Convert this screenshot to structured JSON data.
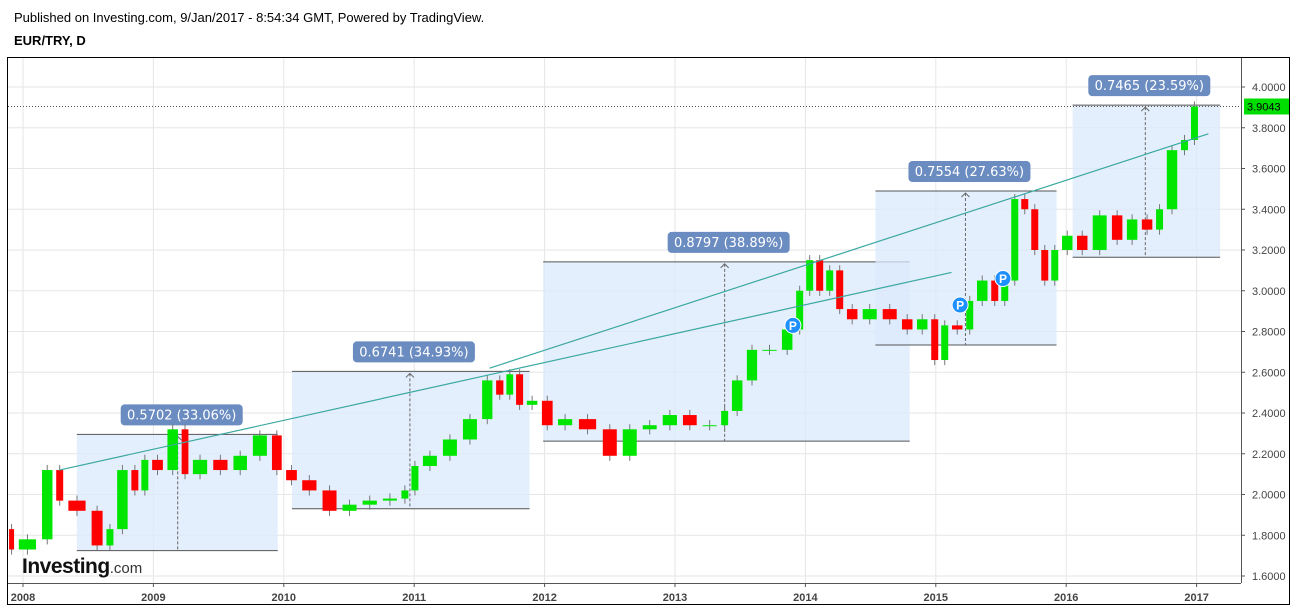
{
  "header": {
    "published": "Published on Investing.com, 9/Jan/2017 - 8:54:34 GMT, Powered by TradingView.",
    "symbol": "EUR/TRY, D"
  },
  "logo": {
    "text": "Investing",
    "suffix": ".com"
  },
  "chart_data": {
    "type": "candlestick",
    "symbol": "EUR/TRY",
    "interval": "D",
    "grid": true,
    "x_ticks": [
      "2008",
      "2009",
      "2010",
      "2011",
      "2012",
      "2013",
      "2014",
      "2015",
      "2016",
      "2017"
    ],
    "y_ticks": [
      "1.6000",
      "1.8000",
      "2.0000",
      "2.2000",
      "2.4000",
      "2.6000",
      "2.8000",
      "3.0000",
      "3.2000",
      "3.4000",
      "3.6000",
      "3.8000",
      "4.0000"
    ],
    "ylim": [
      1.56,
      4.14
    ],
    "xlim": [
      "2007-11-20",
      "2017-03-20"
    ],
    "last_price": "3.9043",
    "last_price_value": 3.9043,
    "colors": {
      "up": "#00e600",
      "down": "#ff0000",
      "wick": "#777777",
      "last_price": "#00dd00",
      "box_fill": "#dbeafc",
      "label_bg": "#6b8cc1",
      "trendline": "#3aa8a0",
      "marker": "#1e90ff"
    },
    "series": [
      [
        "2007-11-20",
        1.83
      ],
      [
        "2007-12-10",
        1.73
      ],
      [
        "2008-02-17",
        1.78
      ],
      [
        "2008-03-30",
        2.12
      ],
      [
        "2008-04-27",
        1.97
      ],
      [
        "2008-07-05",
        1.92
      ],
      [
        "2008-08-18",
        1.75
      ],
      [
        "2008-09-15",
        1.83
      ],
      [
        "2008-10-27",
        2.12
      ],
      [
        "2008-11-24",
        2.02
      ],
      [
        "2008-12-22",
        2.17
      ],
      [
        "2009-02-03",
        2.12
      ],
      [
        "2009-03-17",
        2.32
      ],
      [
        "2009-04-13",
        2.1
      ],
      [
        "2009-06-09",
        2.17
      ],
      [
        "2009-08-05",
        2.12
      ],
      [
        "2009-09-28",
        2.19
      ],
      [
        "2009-11-23",
        2.29
      ],
      [
        "2010-01-01",
        2.12
      ],
      [
        "2010-02-13",
        2.07
      ],
      [
        "2010-04-11",
        2.02
      ],
      [
        "2010-06-06",
        1.92
      ],
      [
        "2010-08-01",
        1.95
      ],
      [
        "2010-09-27",
        1.97
      ],
      [
        "2010-11-22",
        1.98
      ],
      [
        "2010-12-20",
        2.02
      ],
      [
        "2011-01-17",
        2.14
      ],
      [
        "2011-03-14",
        2.19
      ],
      [
        "2011-05-09",
        2.27
      ],
      [
        "2011-07-04",
        2.37
      ],
      [
        "2011-08-14",
        2.56
      ],
      [
        "2011-09-12",
        2.49
      ],
      [
        "2011-10-09",
        2.59
      ],
      [
        "2011-11-06",
        2.44
      ],
      [
        "2011-12-18",
        2.46
      ],
      [
        "2012-01-30",
        2.34
      ],
      [
        "2012-03-27",
        2.37
      ],
      [
        "2012-06-04",
        2.32
      ],
      [
        "2012-07-30",
        2.19
      ],
      [
        "2012-09-24",
        2.32
      ],
      [
        "2012-11-19",
        2.34
      ],
      [
        "2013-01-15",
        2.39
      ],
      [
        "2013-03-11",
        2.34
      ],
      [
        "2013-05-06",
        2.34
      ],
      [
        "2013-06-03",
        2.41
      ],
      [
        "2013-07-15",
        2.56
      ],
      [
        "2013-08-25",
        2.71
      ],
      [
        "2013-10-21",
        2.71
      ],
      [
        "2013-12-02",
        2.81
      ],
      [
        "2013-12-30",
        3.0
      ],
      [
        "2014-01-27",
        3.15
      ],
      [
        "2014-02-24",
        3.0
      ],
      [
        "2014-03-24",
        3.1
      ],
      [
        "2014-04-21",
        2.91
      ],
      [
        "2014-06-02",
        2.86
      ],
      [
        "2014-07-28",
        2.91
      ],
      [
        "2014-09-22",
        2.86
      ],
      [
        "2014-11-03",
        2.81
      ],
      [
        "2014-12-15",
        2.86
      ],
      [
        "2015-01-12",
        2.66
      ],
      [
        "2015-02-09",
        2.83
      ],
      [
        "2015-03-23",
        2.81
      ],
      [
        "2015-04-20",
        2.95
      ],
      [
        "2015-06-01",
        3.05
      ],
      [
        "2015-06-29",
        2.95
      ],
      [
        "2015-07-27",
        3.05
      ],
      [
        "2015-08-24",
        3.45
      ],
      [
        "2015-09-21",
        3.4
      ],
      [
        "2015-10-19",
        3.2
      ],
      [
        "2015-11-16",
        3.05
      ],
      [
        "2015-12-14",
        3.2
      ],
      [
        "2016-01-25",
        3.27
      ],
      [
        "2016-03-07",
        3.2
      ],
      [
        "2016-05-02",
        3.37
      ],
      [
        "2016-06-13",
        3.25
      ],
      [
        "2016-07-25",
        3.35
      ],
      [
        "2016-09-05",
        3.3
      ],
      [
        "2016-10-03",
        3.4
      ],
      [
        "2016-11-14",
        3.69
      ],
      [
        "2016-12-12",
        3.74
      ],
      [
        "2017-01-09",
        3.9043
      ]
    ],
    "annotations": {
      "price_ranges": [
        {
          "start": "2008-05-31",
          "end": "2009-12-15",
          "low": 1.7247,
          "high": 2.2949,
          "arrow_at": "2009-03-10",
          "label": "0.5702 (33.06%)"
        },
        {
          "start": "2010-01-24",
          "end": "2011-11-20",
          "low": 1.9299,
          "high": 2.604,
          "arrow_at": "2010-12-20",
          "label": "0.6741 (34.93%)"
        },
        {
          "start": "2011-12-28",
          "end": "2014-10-20",
          "low": 2.262,
          "high": 3.1417,
          "arrow_at": "2013-05-20",
          "label": "0.8797 (38.89%)"
        },
        {
          "start": "2014-07-16",
          "end": "2015-12-05",
          "low": 2.734,
          "high": 3.4894,
          "arrow_at": "2015-03-25",
          "label": "0.7554 (27.63%)"
        },
        {
          "start": "2016-01-19",
          "end": "2017-03-08",
          "low": 3.1645,
          "high": 3.911,
          "arrow_at": "2016-08-10",
          "label": "0.7465 (23.59%)"
        }
      ],
      "trendlines": [
        {
          "from": [
            "2008-04-12",
            2.12
          ],
          "to": [
            "2015-02-14",
            3.09
          ]
        },
        {
          "from": [
            "2011-07-31",
            2.62
          ],
          "to": [
            "2017-02-03",
            3.77
          ]
        }
      ],
      "markers": [
        {
          "date": "2013-11-27",
          "price": 2.83,
          "label": "P"
        },
        {
          "date": "2015-03-10",
          "price": 2.93,
          "label": "P"
        },
        {
          "date": "2015-07-08",
          "price": 3.06,
          "label": "P"
        }
      ]
    }
  }
}
